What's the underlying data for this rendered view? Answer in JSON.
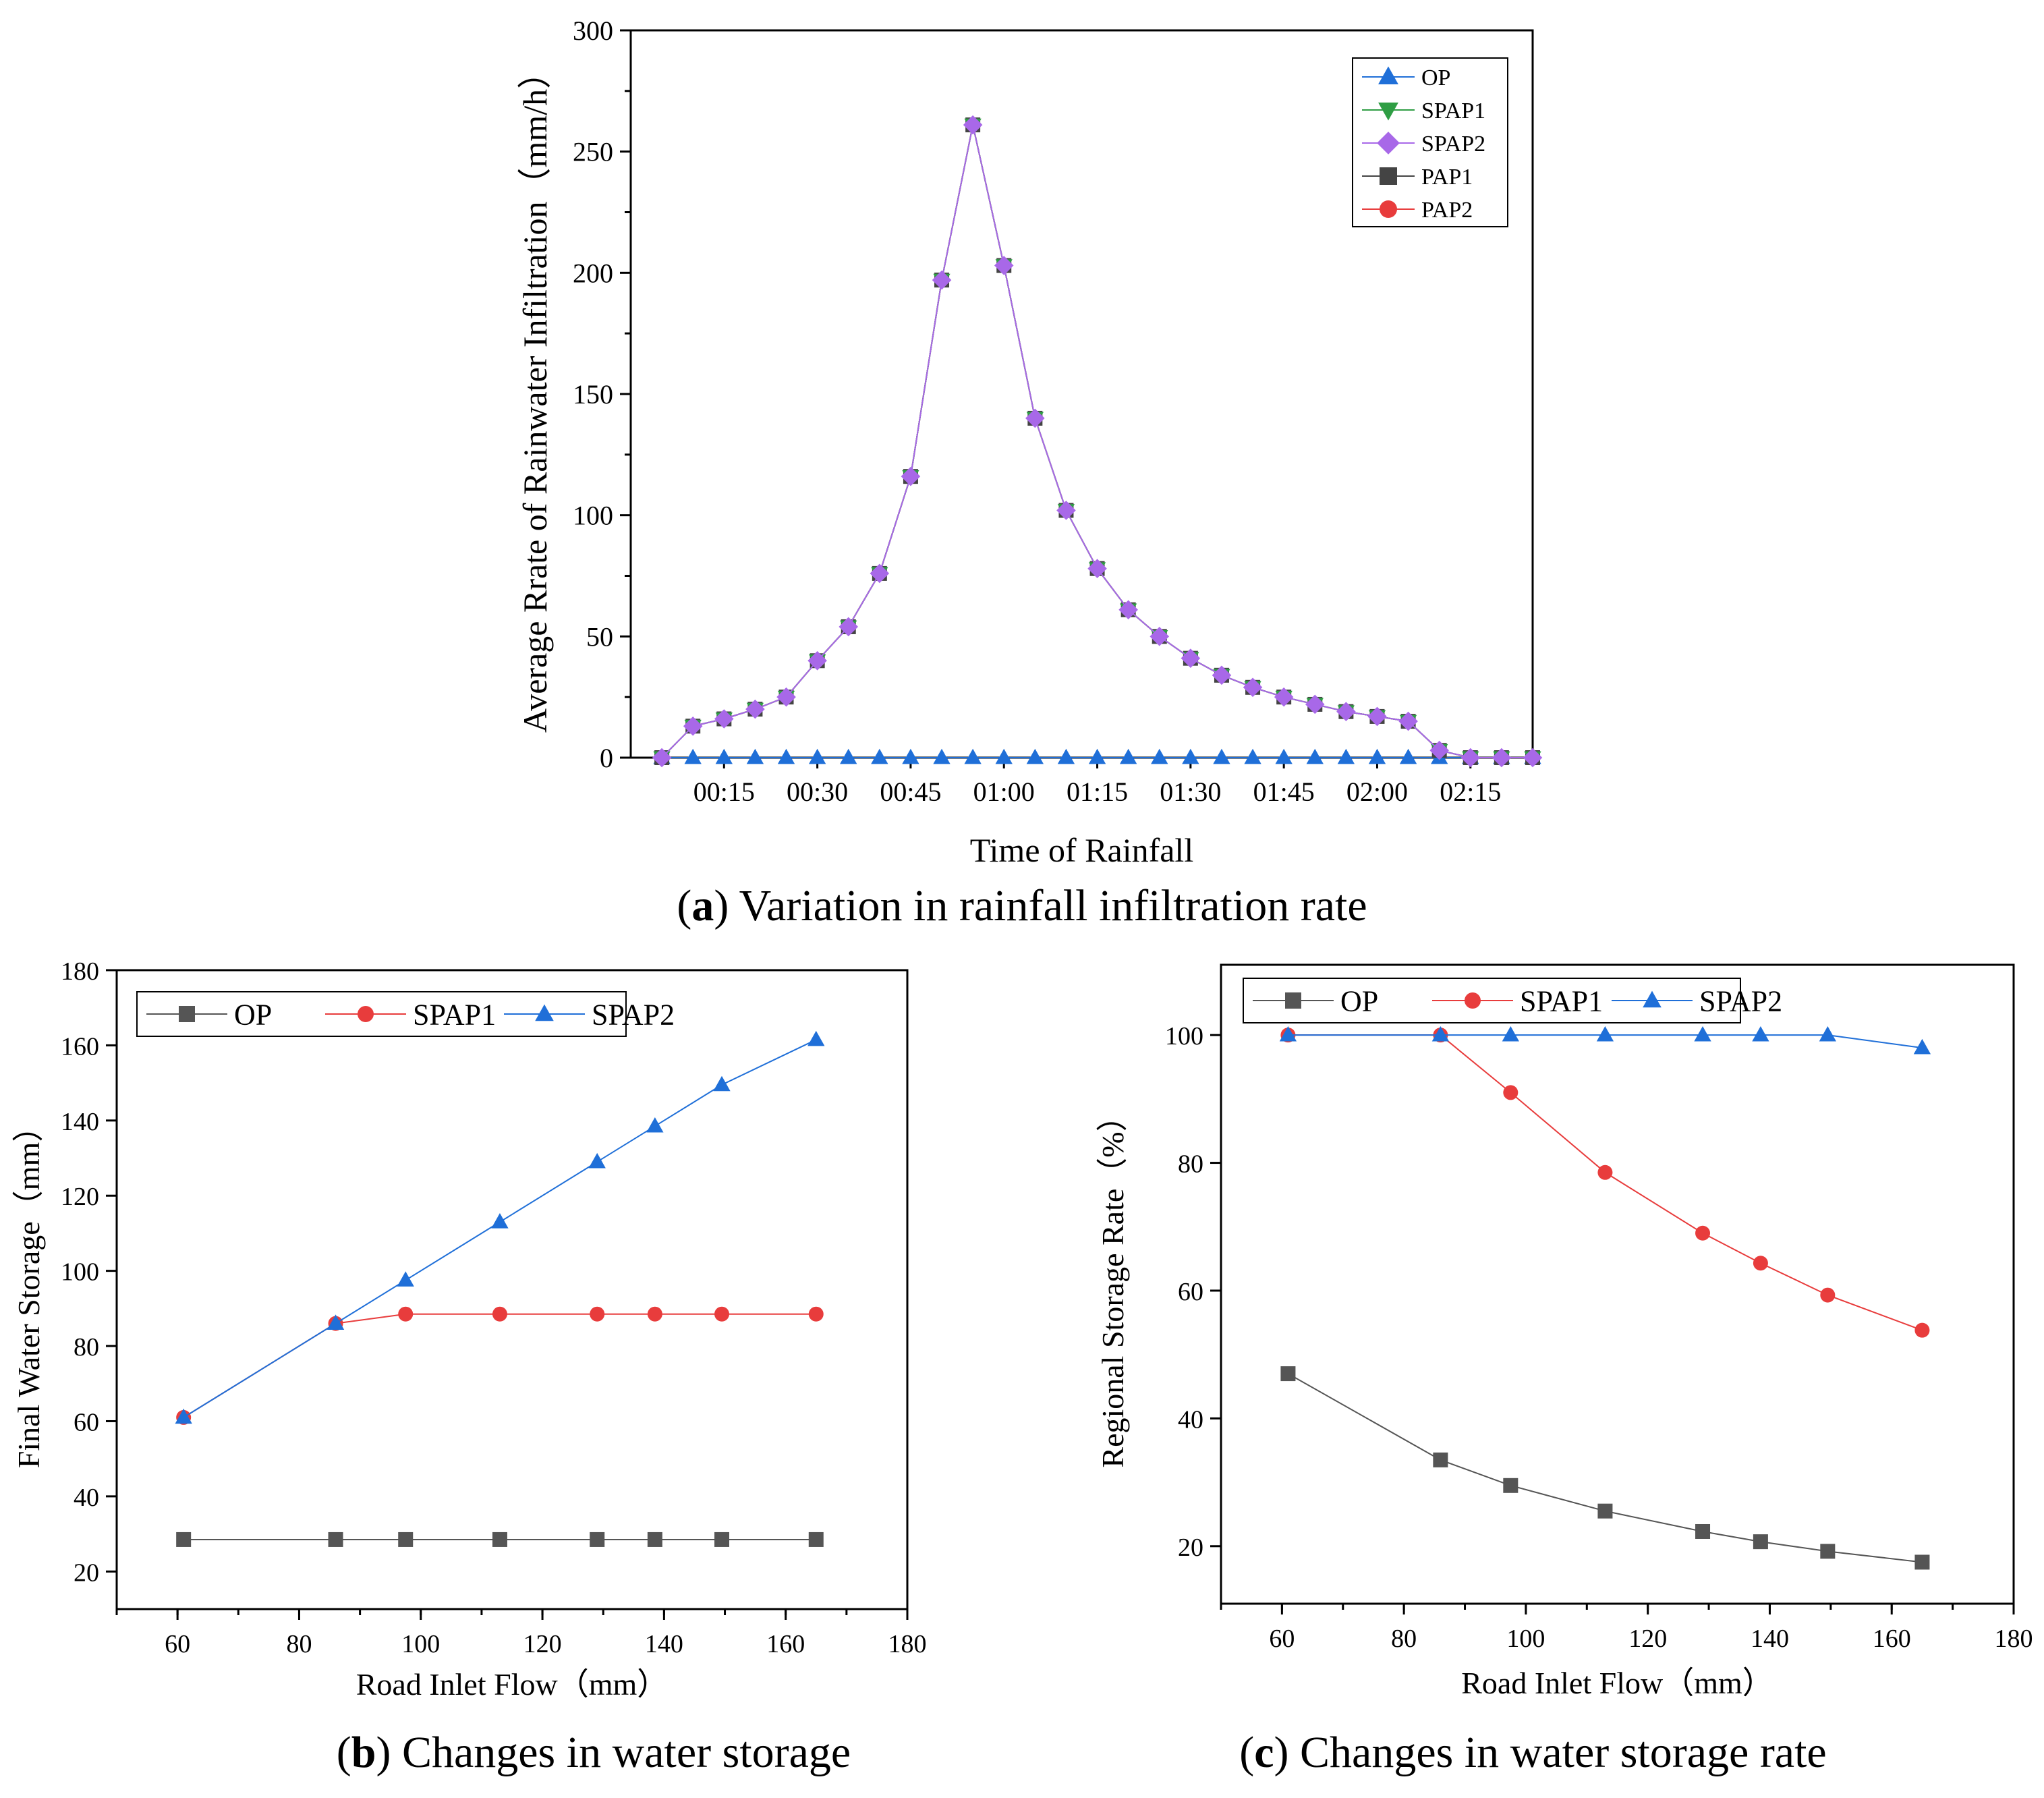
{
  "colors": {
    "op_a": "#1f6fd8",
    "spap1_a": "#2f9e44",
    "spap2_a": "#a868e8",
    "pap1_a": "#444444",
    "pap2_a": "#e83c3c",
    "gray": "#555555",
    "red": "#e83c3c",
    "blue": "#1f6fd8"
  },
  "chart_data": [
    {
      "id": "a",
      "type": "line",
      "caption_letter": "a",
      "caption_text": " Variation in rainfall infiltration rate",
      "xlabel": "Time of Rainfall",
      "ylabel": "Average Rrate of Rainwater Infiltration（mm/h）",
      "ylim": [
        0,
        300
      ],
      "yticks": [
        0,
        50,
        100,
        150,
        200,
        250,
        300
      ],
      "xlim": [
        0,
        145
      ],
      "xticks": [
        {
          "x": 15,
          "label": "00:15"
        },
        {
          "x": 30,
          "label": "00:30"
        },
        {
          "x": 45,
          "label": "00:45"
        },
        {
          "x": 60,
          "label": "01:00"
        },
        {
          "x": 75,
          "label": "01:15"
        },
        {
          "x": 90,
          "label": "01:30"
        },
        {
          "x": 105,
          "label": "01:45"
        },
        {
          "x": 120,
          "label": "02:00"
        },
        {
          "x": 135,
          "label": "02:15"
        }
      ],
      "legend": [
        "OP",
        "SPAP1",
        "SPAP2",
        "PAP1",
        "PAP2"
      ],
      "legend_position": "top-right",
      "x": [
        5,
        10,
        15,
        20,
        25,
        30,
        35,
        40,
        45,
        50,
        55,
        60,
        65,
        70,
        75,
        80,
        85,
        90,
        95,
        100,
        105,
        110,
        115,
        120,
        125,
        130,
        135,
        140,
        145
      ],
      "series": [
        {
          "name": "OP",
          "marker": "triangle-up",
          "color_key": "op_a",
          "values": [
            0,
            0,
            0,
            0,
            0,
            0,
            0,
            0,
            0,
            0,
            0,
            0,
            0,
            0,
            0,
            0,
            0,
            0,
            0,
            0,
            0,
            0,
            0,
            0,
            0,
            0,
            0,
            0,
            0
          ]
        },
        {
          "name": "PAP2",
          "marker": "circle",
          "color_key": "pap2_a",
          "values": [
            0,
            13,
            16,
            20,
            25,
            40,
            54,
            76,
            116,
            197,
            261,
            203,
            140,
            102,
            78,
            61,
            50,
            41,
            34,
            29,
            25,
            22,
            19,
            17,
            15,
            3,
            0,
            0,
            0
          ]
        },
        {
          "name": "PAP1",
          "marker": "square",
          "color_key": "pap1_a",
          "values": [
            0,
            13,
            16,
            20,
            25,
            40,
            54,
            76,
            116,
            197,
            261,
            203,
            140,
            102,
            78,
            61,
            50,
            41,
            34,
            29,
            25,
            22,
            19,
            17,
            15,
            3,
            0,
            0,
            0
          ]
        },
        {
          "name": "SPAP1",
          "marker": "triangle-down",
          "color_key": "spap1_a",
          "values": [
            0,
            13,
            16,
            20,
            25,
            40,
            54,
            76,
            116,
            197,
            261,
            203,
            140,
            102,
            78,
            61,
            50,
            41,
            34,
            29,
            25,
            22,
            19,
            17,
            15,
            3,
            0,
            0,
            0
          ]
        },
        {
          "name": "SPAP2",
          "marker": "diamond",
          "color_key": "spap2_a",
          "values": [
            0,
            13,
            16,
            20,
            25,
            40,
            54,
            76,
            116,
            197,
            261,
            203,
            140,
            102,
            78,
            61,
            50,
            41,
            34,
            29,
            25,
            22,
            19,
            17,
            15,
            3,
            0,
            0,
            0
          ]
        }
      ]
    },
    {
      "id": "b",
      "type": "line",
      "caption_letter": "b",
      "caption_text": " Changes in water storage",
      "xlabel": "Road Inlet Flow（mm）",
      "ylabel": "Final Water Storage（mm）",
      "xlim": [
        50,
        180
      ],
      "ylim": [
        10,
        180
      ],
      "xticks": [
        60,
        80,
        100,
        120,
        140,
        160,
        180
      ],
      "yticks": [
        20,
        40,
        60,
        80,
        100,
        120,
        140,
        160,
        180
      ],
      "legend": [
        "OP",
        "SPAP1",
        "SPAP2"
      ],
      "legend_position": "top-left",
      "x": [
        61,
        86,
        97.5,
        113,
        129,
        138.5,
        149.5,
        165
      ],
      "series": [
        {
          "name": "OP",
          "marker": "square",
          "color_key": "gray",
          "values": [
            28.5,
            28.5,
            28.5,
            28.5,
            28.5,
            28.5,
            28.5,
            28.5
          ]
        },
        {
          "name": "SPAP1",
          "marker": "circle",
          "color_key": "red",
          "values": [
            61,
            86,
            88.5,
            88.5,
            88.5,
            88.5,
            88.5,
            88.5
          ]
        },
        {
          "name": "SPAP2",
          "marker": "triangle-up",
          "color_key": "blue",
          "values": [
            61,
            86,
            97.5,
            113,
            129,
            138.5,
            149.5,
            161.5
          ]
        }
      ]
    },
    {
      "id": "c",
      "type": "line",
      "caption_letter": "c",
      "caption_text": " Changes in water storage rate",
      "xlabel": "Road Inlet Flow（mm）",
      "ylabel": "Regional Storage Rate（%）",
      "xlim": [
        50,
        180
      ],
      "ylim": [
        11,
        111
      ],
      "xticks": [
        60,
        80,
        100,
        120,
        140,
        160,
        180
      ],
      "yticks": [
        20,
        40,
        60,
        80,
        100
      ],
      "legend": [
        "OP",
        "SPAP1",
        "SPAP2"
      ],
      "legend_position": "top",
      "x": [
        61,
        86,
        97.5,
        113,
        129,
        138.5,
        149.5,
        165
      ],
      "series": [
        {
          "name": "OP",
          "marker": "square",
          "color_key": "gray",
          "values": [
            47,
            33.5,
            29.5,
            25.5,
            22.3,
            20.7,
            19.2,
            17.5
          ]
        },
        {
          "name": "SPAP1",
          "marker": "circle",
          "color_key": "red",
          "values": [
            100,
            100,
            91,
            78.5,
            69,
            64.3,
            59.3,
            53.8
          ]
        },
        {
          "name": "SPAP2",
          "marker": "triangle-up",
          "color_key": "blue",
          "values": [
            100,
            100,
            100,
            100,
            100,
            100,
            100,
            98
          ]
        }
      ]
    }
  ]
}
